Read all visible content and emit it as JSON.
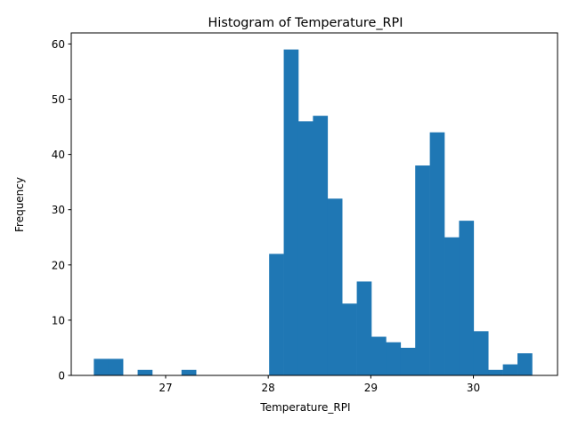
{
  "chart_data": {
    "type": "bar",
    "title": "Histogram of Temperature_RPI",
    "xlabel": "Temperature_RPI",
    "ylabel": "Frequency",
    "bin_start": 26.3,
    "bin_width": 0.1424,
    "values": [
      3,
      3,
      0,
      1,
      0,
      0,
      1,
      0,
      0,
      0,
      0,
      0,
      22,
      59,
      46,
      47,
      32,
      13,
      17,
      7,
      6,
      5,
      38,
      44,
      25,
      28,
      8,
      1,
      2,
      4
    ],
    "xlim": [
      26.08,
      30.82
    ],
    "ylim": [
      0,
      62
    ],
    "xticks": [
      27,
      28,
      29,
      30
    ],
    "yticks": [
      0,
      10,
      20,
      30,
      40,
      50,
      60
    ],
    "grid": false,
    "bar_color": "#1f77b4"
  }
}
